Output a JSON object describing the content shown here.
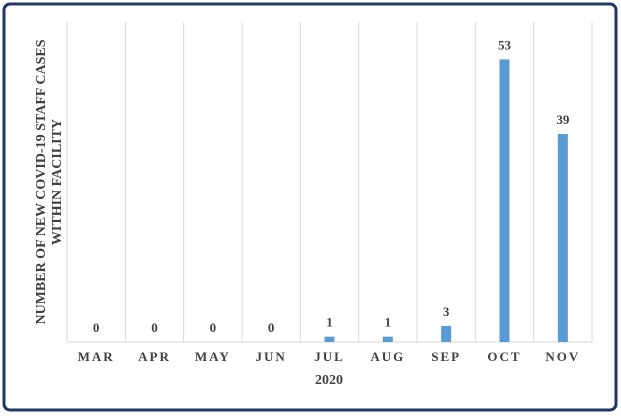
{
  "chart_data": {
    "type": "bar",
    "y_label": [
      "NUMBER OF NEW COVID-19 STAFF CASES",
      "WITHIN FACILITY"
    ],
    "x_label": "2020",
    "categories": [
      "MAR",
      "APR",
      "MAY",
      "JUN",
      "JUL",
      "AUG",
      "SEP",
      "OCT",
      "NOV"
    ],
    "values": [
      0,
      0,
      0,
      0,
      1,
      1,
      3,
      53,
      39
    ],
    "color": "#5b9bd5",
    "ylim": [
      0,
      60
    ]
  }
}
